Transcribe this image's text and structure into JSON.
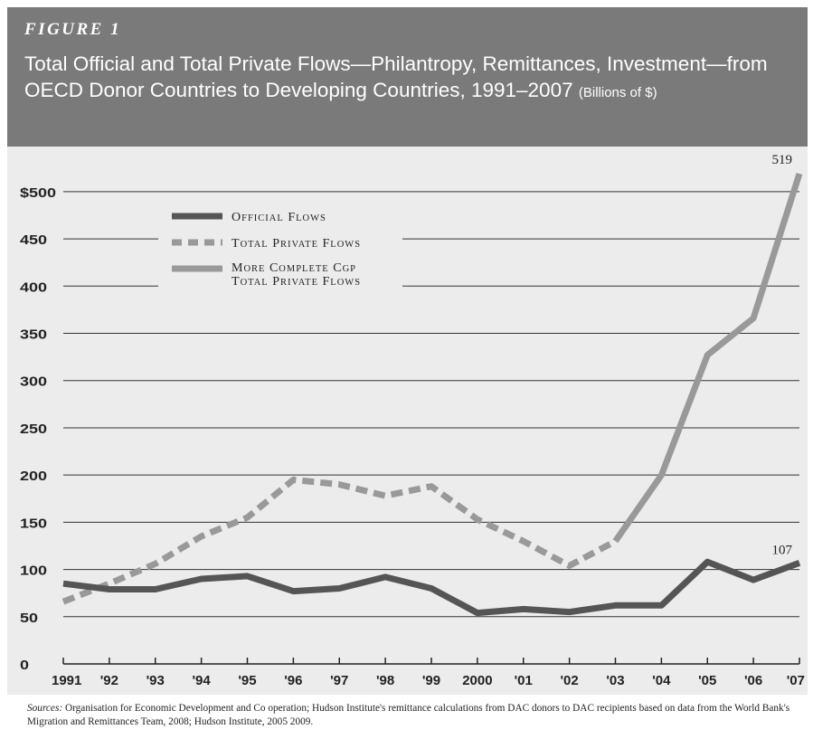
{
  "figure_label": "FIGURE 1",
  "title_main": "Total Official and Total Private Flows—Philantropy, Remittances, Investment—from OECD Donor Countries to Developing Countries, 1991–2007",
  "title_units": "(Billions of $)",
  "sources_label": "Sources:",
  "sources_text": "Organisation for Economic Development and Co operation; Hudson Institute's remittance calculations from DAC donors to DAC recipients based on data from the World Bank's Migration and Remittances Team, 2008; Hudson Institute, 2005 2009.",
  "colors": {
    "official": "#555555",
    "private": "#999999",
    "cgp": "#999999",
    "header": "#7a7a7a",
    "plot_bg": "#ececec"
  },
  "chart_data": {
    "type": "line",
    "categories": [
      "1991",
      "'92",
      "'93",
      "'94",
      "'95",
      "'96",
      "'97",
      "'98",
      "'99",
      "2000",
      "'01",
      "'02",
      "'03",
      "'04",
      "'05",
      "'06",
      "'07"
    ],
    "yticks": [
      "0",
      "50",
      "100",
      "150",
      "200",
      "250",
      "300",
      "350",
      "400",
      "450",
      "$500"
    ],
    "ylim": [
      0,
      520
    ],
    "grid": "horizontal",
    "legend_position": "top-left",
    "series": [
      {
        "name": "Official Flows",
        "style": "solid-dark",
        "values": [
          85,
          79,
          79,
          90,
          93,
          77,
          80,
          92,
          80,
          54,
          58,
          55,
          62,
          62,
          108,
          89,
          107
        ]
      },
      {
        "name": "Total Private Flows",
        "style": "dashed-light",
        "values": [
          66,
          85,
          106,
          135,
          155,
          195,
          190,
          178,
          188,
          153,
          130,
          104,
          130,
          null,
          null,
          null,
          null
        ]
      },
      {
        "name": "More Complete CGP Total Private Flows",
        "style": "solid-light",
        "values": [
          null,
          null,
          null,
          null,
          null,
          null,
          null,
          null,
          null,
          null,
          null,
          null,
          130,
          200,
          327,
          366,
          519
        ]
      }
    ],
    "annotations": [
      {
        "series": 2,
        "index": 16,
        "text": "519"
      },
      {
        "series": 0,
        "index": 16,
        "text": "107"
      }
    ]
  }
}
